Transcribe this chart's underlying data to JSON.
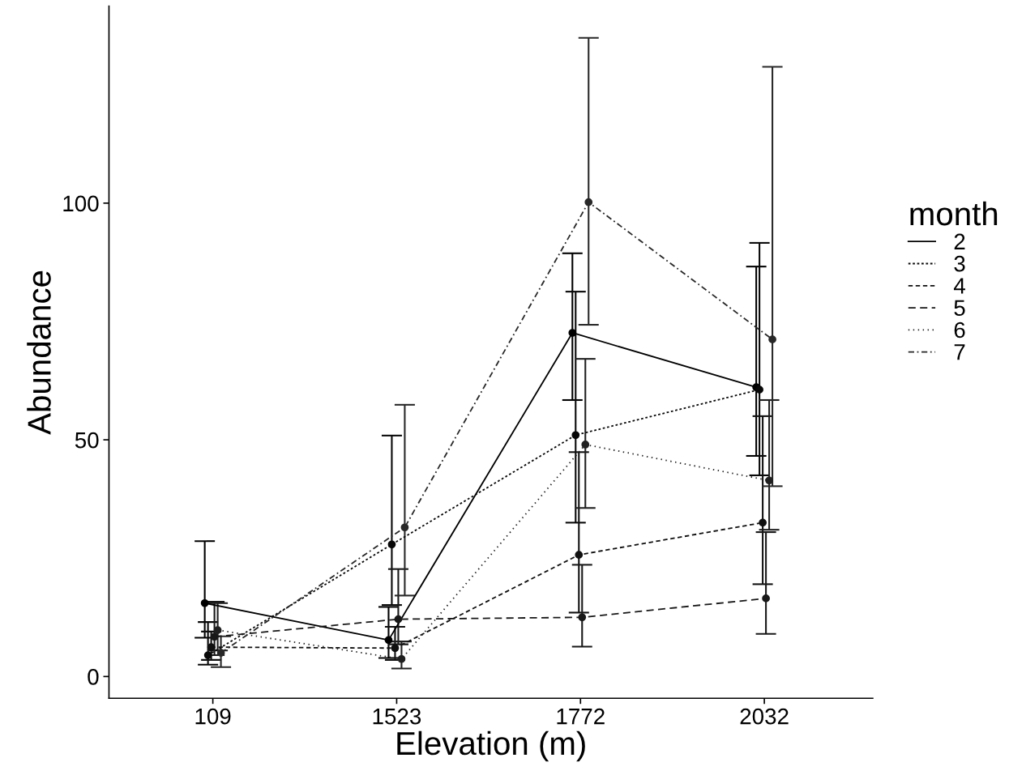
{
  "chart_data": {
    "type": "line",
    "xlabel": "Elevation (m)",
    "ylabel": "Abundance",
    "legend_title": "month",
    "categories": [
      "109",
      "1523",
      "1772",
      "2032"
    ],
    "ylim": [
      -4.6,
      141.6
    ],
    "yticks": [
      0,
      50,
      100
    ],
    "grid": false,
    "legend": "right",
    "marker": "circle",
    "series": [
      {
        "name": "2",
        "color": "#000000",
        "line_style": "solid",
        "values": [
          15.5,
          7.7,
          72.6,
          61.1
        ],
        "errors": [
          [
            8.2,
            28.6
          ],
          [
            3.9,
            14.7
          ],
          [
            58.4,
            89.4
          ],
          [
            46.6,
            86.6
          ]
        ]
      },
      {
        "name": "3",
        "color": "#080808",
        "line_style": "dotted",
        "values": [
          4.5,
          27.9,
          51.0,
          60.6
        ],
        "errors": [
          [
            2.5,
            11.5
          ],
          [
            15.1,
            50.9
          ],
          [
            32.5,
            81.3
          ],
          [
            42.5,
            91.6
          ]
        ]
      },
      {
        "name": "4",
        "color": "#101010",
        "line_style": "dashed",
        "values": [
          6.2,
          6.0,
          25.7,
          32.5
        ],
        "errors": [
          [
            3.5,
            9.5
          ],
          [
            3.5,
            10.5
          ],
          [
            13.5,
            47.4
          ],
          [
            19.5,
            55.0
          ]
        ]
      },
      {
        "name": "5",
        "color": "#181818",
        "line_style": "longdash",
        "values": [
          8.4,
          12.1,
          12.5,
          16.5
        ],
        "errors": [
          [
            4.5,
            15.8
          ],
          [
            6.8,
            22.7
          ],
          [
            6.3,
            23.6
          ],
          [
            9.0,
            30.5
          ]
        ]
      },
      {
        "name": "6",
        "color": "#202020",
        "line_style": "finedotted",
        "values": [
          9.8,
          3.7,
          49.0,
          41.4
        ],
        "errors": [
          [
            5.5,
            15.5
          ],
          [
            1.7,
            7.4
          ],
          [
            35.6,
            67.1
          ],
          [
            31.0,
            58.4
          ]
        ]
      },
      {
        "name": "7",
        "color": "#282828",
        "line_style": "dashdot",
        "values": [
          5.0,
          31.5,
          100.2,
          71.2
        ],
        "errors": [
          [
            2.0,
            8.5
          ],
          [
            17.1,
            57.4
          ],
          [
            74.3,
            134.9
          ],
          [
            40.2,
            128.8
          ]
        ]
      }
    ]
  }
}
